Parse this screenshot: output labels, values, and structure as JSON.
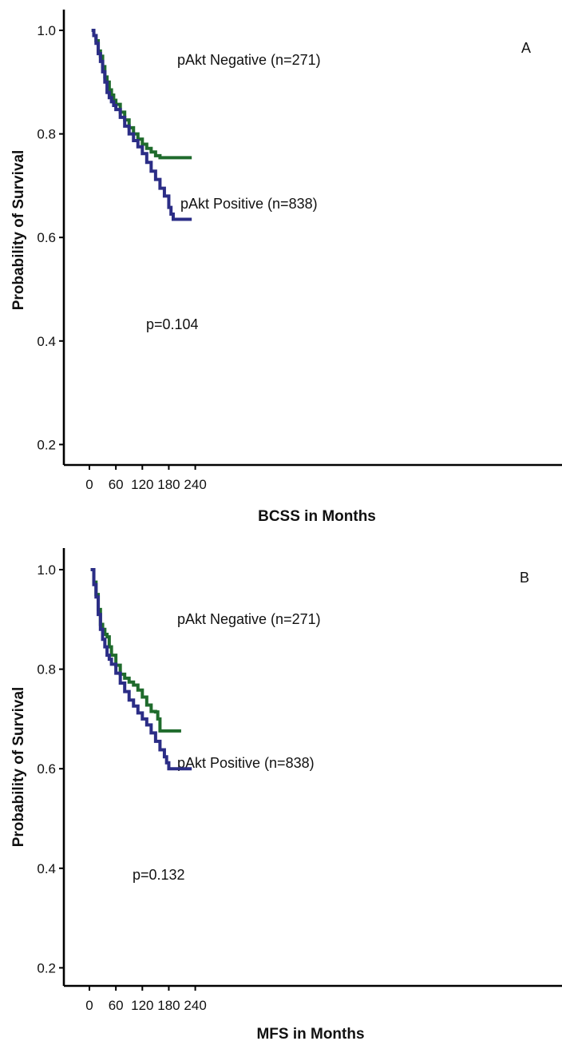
{
  "chart_data": [
    {
      "type": "line",
      "panel_label": "A",
      "xlabel": "BCSS in Months",
      "ylabel": "Probability of Survival",
      "xlim": [
        -20,
        265
      ],
      "ylim": [
        0.14,
        1.05
      ],
      "xticks": [
        0,
        60,
        120,
        180,
        240
      ],
      "yticks": [
        0.2,
        0.4,
        0.6,
        0.8,
        1.0
      ],
      "annotation": "p=0.104",
      "series": [
        {
          "name": "pAkt Negative (n=271)",
          "color": "#1f6b2c",
          "x": [
            5,
            10,
            15,
            20,
            25,
            30,
            35,
            40,
            45,
            50,
            55,
            60,
            70,
            80,
            90,
            100,
            110,
            120,
            130,
            140,
            150,
            160,
            170,
            180,
            190,
            200,
            210,
            220,
            232
          ],
          "y": [
            1.0,
            0.99,
            0.98,
            0.96,
            0.95,
            0.93,
            0.91,
            0.9,
            0.885,
            0.875,
            0.865,
            0.857,
            0.842,
            0.827,
            0.812,
            0.8,
            0.79,
            0.78,
            0.772,
            0.765,
            0.758,
            0.754,
            0.754,
            0.754,
            0.754,
            0.754,
            0.754,
            0.754,
            0.754
          ]
        },
        {
          "name": "pAkt Positive (n=838)",
          "color": "#2b2d86",
          "x": [
            5,
            10,
            15,
            20,
            25,
            30,
            35,
            40,
            45,
            50,
            55,
            60,
            70,
            80,
            90,
            100,
            110,
            120,
            130,
            140,
            150,
            160,
            170,
            180,
            185,
            190,
            200,
            210,
            220,
            232
          ],
          "y": [
            1.0,
            0.99,
            0.975,
            0.955,
            0.94,
            0.92,
            0.9,
            0.88,
            0.87,
            0.862,
            0.855,
            0.847,
            0.832,
            0.815,
            0.8,
            0.787,
            0.775,
            0.762,
            0.745,
            0.728,
            0.712,
            0.695,
            0.68,
            0.658,
            0.645,
            0.635,
            0.635,
            0.635,
            0.635,
            0.635
          ]
        }
      ]
    },
    {
      "type": "line",
      "panel_label": "B",
      "xlabel": "MFS in Months",
      "ylabel": "Probability of Survival",
      "xlim": [
        -20,
        265
      ],
      "ylim": [
        0.14,
        1.05
      ],
      "xticks": [
        0,
        60,
        120,
        180,
        240
      ],
      "yticks": [
        0.2,
        0.4,
        0.6,
        0.8,
        1.0
      ],
      "annotation": "p=0.132",
      "series": [
        {
          "name": "pAkt Negative (n=271)",
          "color": "#1f6b2c",
          "x": [
            3,
            10,
            15,
            20,
            25,
            30,
            35,
            40,
            45,
            50,
            60,
            70,
            80,
            90,
            100,
            110,
            120,
            130,
            140,
            150,
            155,
            160,
            170,
            180,
            190,
            200,
            208
          ],
          "y": [
            1.0,
            0.975,
            0.95,
            0.92,
            0.89,
            0.88,
            0.87,
            0.865,
            0.845,
            0.828,
            0.808,
            0.79,
            0.782,
            0.774,
            0.768,
            0.758,
            0.744,
            0.728,
            0.715,
            0.714,
            0.7,
            0.676,
            0.676,
            0.676,
            0.676,
            0.676,
            0.676
          ]
        },
        {
          "name": "pAkt Positive (n=838)",
          "color": "#2b2d86",
          "x": [
            3,
            10,
            15,
            20,
            25,
            30,
            35,
            40,
            45,
            50,
            60,
            70,
            80,
            90,
            100,
            110,
            120,
            130,
            140,
            150,
            160,
            170,
            175,
            180,
            190,
            200,
            210,
            220,
            232
          ],
          "y": [
            1.0,
            0.97,
            0.945,
            0.91,
            0.88,
            0.86,
            0.845,
            0.828,
            0.82,
            0.81,
            0.792,
            0.772,
            0.755,
            0.738,
            0.726,
            0.712,
            0.7,
            0.688,
            0.672,
            0.655,
            0.638,
            0.624,
            0.612,
            0.6,
            0.6,
            0.6,
            0.6,
            0.6,
            0.6
          ]
        }
      ]
    }
  ]
}
